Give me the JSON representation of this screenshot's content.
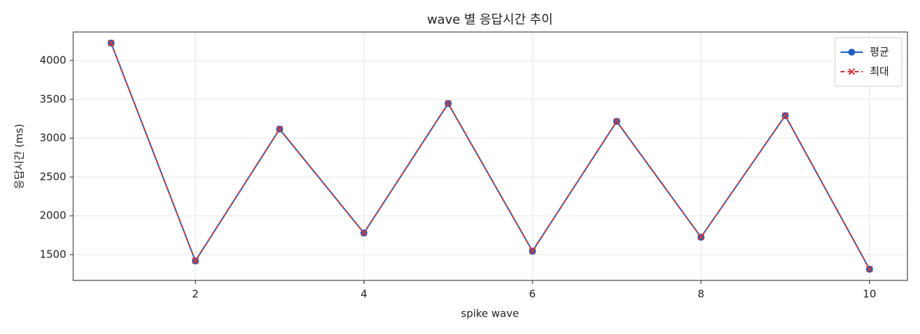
{
  "chart_data": {
    "type": "line",
    "title": "wave 별 응답시간 추이",
    "x_label": "spike wave",
    "y_label": "응답시간 (ms)",
    "x": [
      1,
      2,
      3,
      4,
      5,
      6,
      7,
      8,
      9,
      10
    ],
    "series": [
      {
        "name": "평균",
        "color": "#1f5fbf",
        "marker": "circle",
        "linestyle": "solid",
        "values": [
          4224,
          1419,
          3116,
          1778,
          3446,
          1545,
          3215,
          1724,
          3290,
          1312
        ]
      },
      {
        "name": "최대",
        "color": "#d0393a",
        "marker": "x",
        "linestyle": "dashed",
        "values": [
          4226,
          1421,
          3118,
          1780,
          3448,
          1547,
          3217,
          1726,
          3292,
          1314
        ]
      }
    ],
    "xlim": [
      0.55,
      10.45
    ],
    "xticks": [
      2,
      4,
      6,
      8,
      10
    ],
    "ylim": [
      1168,
      4367
    ],
    "yticks": [
      1500,
      2000,
      2500,
      3000,
      3500,
      4000
    ],
    "grid": true,
    "legend": "upper right"
  }
}
